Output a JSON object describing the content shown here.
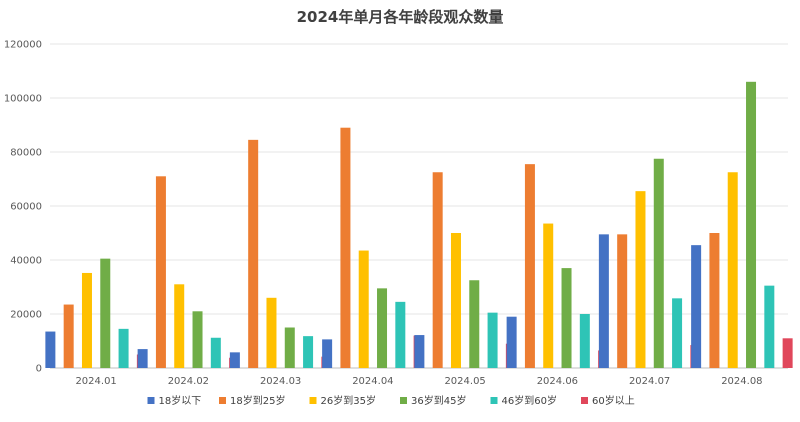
{
  "chart_data": {
    "type": "bar",
    "title": "2024年单月各年龄段观众数量",
    "xlabel": "",
    "ylabel": "",
    "ylim": [
      0,
      120000
    ],
    "yticks": [
      0,
      20000,
      40000,
      60000,
      80000,
      100000,
      120000
    ],
    "grid": true,
    "legend_position": "bottom",
    "categories": [
      "2024.01",
      "2024.02",
      "2024.03",
      "2024.04",
      "2024.05",
      "2024.06",
      "2024.07",
      "2024.08"
    ],
    "series": [
      {
        "name": "18岁以下",
        "color": "#4472C4",
        "values": [
          13500,
          7000,
          5800,
          10600,
          12200,
          19000,
          49500,
          45500
        ]
      },
      {
        "name": "18岁到25岁",
        "color": "#ED7D31",
        "values": [
          23500,
          71000,
          84500,
          89000,
          72500,
          75500,
          49500,
          50000
        ]
      },
      {
        "name": "26岁到35岁",
        "color": "#FFC000",
        "values": [
          35200,
          31000,
          26000,
          43500,
          50000,
          53500,
          65500,
          72500
        ]
      },
      {
        "name": "36岁到45岁",
        "color": "#70AD47",
        "values": [
          40500,
          21000,
          15000,
          29500,
          32500,
          37000,
          77500,
          106000
        ]
      },
      {
        "name": "46岁到60岁",
        "color": "#2EC4B6",
        "values": [
          14500,
          11200,
          11800,
          24500,
          20500,
          20000,
          25800,
          30500
        ]
      },
      {
        "name": "60岁以上",
        "color": "#E0475B",
        "values": [
          5000,
          3800,
          4200,
          12000,
          9000,
          6500,
          8500,
          11000
        ]
      }
    ]
  }
}
